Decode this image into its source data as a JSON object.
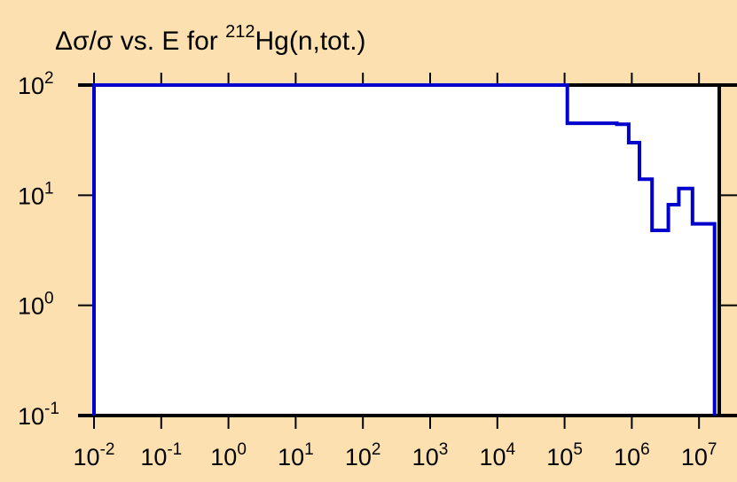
{
  "chart_data": {
    "type": "line",
    "title_parts": {
      "main": "Δσ/σ vs. E for ",
      "superscript": "212",
      "rest": "Hg(n,tot.)"
    },
    "x_scale": "log",
    "y_scale": "log",
    "xlim": [
      0.01,
      20000000
    ],
    "ylim": [
      0.1,
      100
    ],
    "x_ticks": [
      {
        "base": "10",
        "exp": "-2",
        "value": 0.01
      },
      {
        "base": "10",
        "exp": "-1",
        "value": 0.1
      },
      {
        "base": "10",
        "exp": "0",
        "value": 1
      },
      {
        "base": "10",
        "exp": "1",
        "value": 10
      },
      {
        "base": "10",
        "exp": "2",
        "value": 100
      },
      {
        "base": "10",
        "exp": "3",
        "value": 1000
      },
      {
        "base": "10",
        "exp": "4",
        "value": 10000
      },
      {
        "base": "10",
        "exp": "5",
        "value": 100000
      },
      {
        "base": "10",
        "exp": "6",
        "value": 1000000
      },
      {
        "base": "10",
        "exp": "7",
        "value": 10000000
      }
    ],
    "y_ticks": [
      {
        "base": "10",
        "exp": "2",
        "value": 100
      },
      {
        "base": "10",
        "exp": "1",
        "value": 10
      },
      {
        "base": "10",
        "exp": "0",
        "value": 1
      },
      {
        "base": "10",
        "exp": "-1",
        "value": 0.1
      }
    ],
    "series": [
      {
        "color": "#0000cc",
        "step_points": [
          [
            0.01,
            0.1
          ],
          [
            0.01,
            100
          ],
          [
            110000,
            100
          ],
          [
            110000,
            45
          ],
          [
            600000,
            45
          ],
          [
            600000,
            44
          ],
          [
            900000,
            44
          ],
          [
            900000,
            30
          ],
          [
            1300000,
            30
          ],
          [
            1300000,
            14
          ],
          [
            2000000,
            14
          ],
          [
            2000000,
            4.8
          ],
          [
            3500000,
            4.8
          ],
          [
            3500000,
            8.2
          ],
          [
            5000000,
            8.2
          ],
          [
            5000000,
            11.5
          ],
          [
            8000000,
            11.5
          ],
          [
            8000000,
            5.5
          ],
          [
            17000000,
            5.5
          ],
          [
            17000000,
            0.1
          ]
        ]
      }
    ],
    "grid": false
  }
}
